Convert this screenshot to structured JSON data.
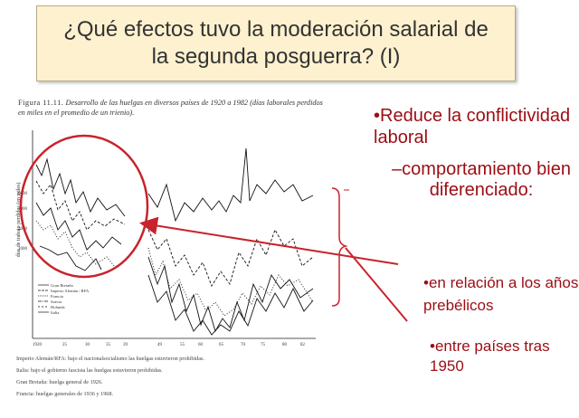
{
  "title": {
    "text": "¿Qué efectos tuvo la moderación salarial de\nla segunda posguerra? (I)"
  },
  "figure": {
    "label": "Figura 11.11.",
    "caption": "Desarrollo de las huelgas en diversos países de 1920 a 1982 (días laborales perdidos en miles en el promedio de un trienio).",
    "y_axis_label": "días de trabajo perdidos (en miles)",
    "y_ticks": [
      "6000",
      "4000",
      "2000",
      "1000"
    ],
    "x_ticks": [
      "1920",
      "25",
      "30",
      "35",
      "39",
      "49",
      "55",
      "60",
      "65",
      "70",
      "75",
      "80",
      "82"
    ],
    "legend": [
      "Gran Bretaña",
      "Imperio Alemán / RFA",
      "Francia",
      "Suecia",
      "Holanda",
      "Italia"
    ],
    "notes": [
      "Imperio Alemán/RFA: bajo el nacionalsocialismo las huelgas estuvieron prohibidas.",
      "Italia: bajo el gobierno fascista las huelgas estuvieron prohibidas.",
      "Gran Bretaña: huelga general de 1926.",
      "Francia: huelgas generales de 1936 y 1968."
    ]
  },
  "bullets": {
    "main": "Reduce la conflictividad laboral",
    "sub": "–comportamiento bien diferenciado:",
    "point1": "en relación a los años prebélicos",
    "point2": "entre países tras 1950"
  },
  "colors": {
    "accent": "#9b0d14",
    "title_bg": "#fdf1cf",
    "circle": "#c8232c"
  }
}
